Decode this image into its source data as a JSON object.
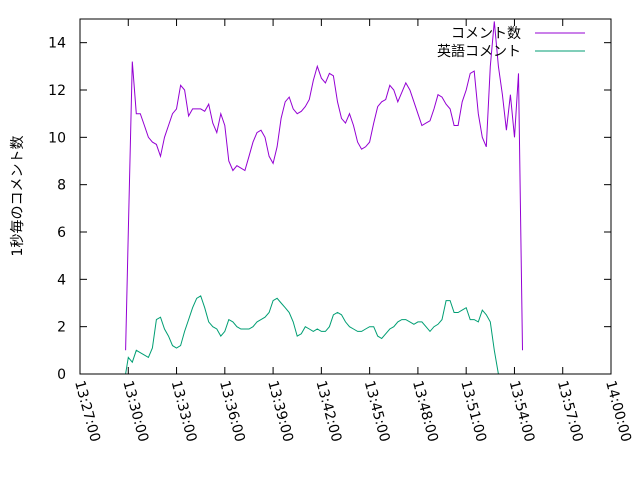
{
  "chart_data": {
    "type": "line",
    "title": "",
    "xlabel": "",
    "ylabel": "1秒毎のコメント数",
    "xlim": [
      "13:27:00",
      "14:00:00"
    ],
    "ylim": [
      0,
      15
    ],
    "grid": false,
    "legend_position": "top-right",
    "x_ticks": [
      "13:27:00",
      "13:30:00",
      "13:33:00",
      "13:36:00",
      "13:39:00",
      "13:42:00",
      "13:45:00",
      "13:48:00",
      "13:51:00",
      "13:54:00",
      "13:57:00",
      "14:00:00"
    ],
    "y_ticks": [
      0,
      2,
      4,
      6,
      8,
      10,
      12,
      14
    ],
    "series": [
      {
        "name": "コメント数",
        "color": "#9400d3",
        "points": [
          [
            "13:29:50",
            1.0
          ],
          [
            "13:30:00",
            6.0
          ],
          [
            "13:30:15",
            13.2
          ],
          [
            "13:30:30",
            11.0
          ],
          [
            "13:30:45",
            11.0
          ],
          [
            "13:31:00",
            10.5
          ],
          [
            "13:31:15",
            10.0
          ],
          [
            "13:31:30",
            9.8
          ],
          [
            "13:31:45",
            9.7
          ],
          [
            "13:32:00",
            9.2
          ],
          [
            "13:32:15",
            10.0
          ],
          [
            "13:32:30",
            10.5
          ],
          [
            "13:32:45",
            11.0
          ],
          [
            "13:33:00",
            11.2
          ],
          [
            "13:33:15",
            12.2
          ],
          [
            "13:33:30",
            12.0
          ],
          [
            "13:33:45",
            10.9
          ],
          [
            "13:34:00",
            11.2
          ],
          [
            "13:34:30",
            11.2
          ],
          [
            "13:34:45",
            11.1
          ],
          [
            "13:35:00",
            11.4
          ],
          [
            "13:35:15",
            10.6
          ],
          [
            "13:35:30",
            10.2
          ],
          [
            "13:35:45",
            11.0
          ],
          [
            "13:36:00",
            10.5
          ],
          [
            "13:36:15",
            9.0
          ],
          [
            "13:36:30",
            8.6
          ],
          [
            "13:36:45",
            8.8
          ],
          [
            "13:37:00",
            8.7
          ],
          [
            "13:37:15",
            8.6
          ],
          [
            "13:37:30",
            9.2
          ],
          [
            "13:37:45",
            9.8
          ],
          [
            "13:38:00",
            10.2
          ],
          [
            "13:38:15",
            10.3
          ],
          [
            "13:38:30",
            10.0
          ],
          [
            "13:38:45",
            9.2
          ],
          [
            "13:39:00",
            8.9
          ],
          [
            "13:39:15",
            9.6
          ],
          [
            "13:39:30",
            10.8
          ],
          [
            "13:39:45",
            11.5
          ],
          [
            "13:40:00",
            11.7
          ],
          [
            "13:40:15",
            11.2
          ],
          [
            "13:40:30",
            11.0
          ],
          [
            "13:40:45",
            11.1
          ],
          [
            "13:41:00",
            11.3
          ],
          [
            "13:41:15",
            11.6
          ],
          [
            "13:41:30",
            12.4
          ],
          [
            "13:41:45",
            13.0
          ],
          [
            "13:42:00",
            12.5
          ],
          [
            "13:42:15",
            12.3
          ],
          [
            "13:42:30",
            12.7
          ],
          [
            "13:42:45",
            12.6
          ],
          [
            "13:43:00",
            11.5
          ],
          [
            "13:43:15",
            10.8
          ],
          [
            "13:43:30",
            10.6
          ],
          [
            "13:43:45",
            11.0
          ],
          [
            "13:44:00",
            10.5
          ],
          [
            "13:44:15",
            9.8
          ],
          [
            "13:44:30",
            9.5
          ],
          [
            "13:44:45",
            9.6
          ],
          [
            "13:45:00",
            9.8
          ],
          [
            "13:45:15",
            10.6
          ],
          [
            "13:45:30",
            11.3
          ],
          [
            "13:45:45",
            11.5
          ],
          [
            "13:46:00",
            11.6
          ],
          [
            "13:46:15",
            12.2
          ],
          [
            "13:46:30",
            12.0
          ],
          [
            "13:46:45",
            11.5
          ],
          [
            "13:47:00",
            11.9
          ],
          [
            "13:47:15",
            12.3
          ],
          [
            "13:47:30",
            12.0
          ],
          [
            "13:47:45",
            11.5
          ],
          [
            "13:48:00",
            11.0
          ],
          [
            "13:48:15",
            10.5
          ],
          [
            "13:48:30",
            10.6
          ],
          [
            "13:48:45",
            10.7
          ],
          [
            "13:49:00",
            11.2
          ],
          [
            "13:49:15",
            11.8
          ],
          [
            "13:49:30",
            11.7
          ],
          [
            "13:49:45",
            11.4
          ],
          [
            "13:50:00",
            11.2
          ],
          [
            "13:50:15",
            10.5
          ],
          [
            "13:50:30",
            10.5
          ],
          [
            "13:50:45",
            11.5
          ],
          [
            "13:51:00",
            12.0
          ],
          [
            "13:51:15",
            12.7
          ],
          [
            "13:51:30",
            12.8
          ],
          [
            "13:51:45",
            11.0
          ],
          [
            "13:52:00",
            10.0
          ],
          [
            "13:52:15",
            9.6
          ],
          [
            "13:52:30",
            13.0
          ],
          [
            "13:52:45",
            14.9
          ],
          [
            "13:53:00",
            13.0
          ],
          [
            "13:53:15",
            11.8
          ],
          [
            "13:53:30",
            10.3
          ],
          [
            "13:53:45",
            11.8
          ],
          [
            "13:54:00",
            10.0
          ],
          [
            "13:54:15",
            12.7
          ],
          [
            "13:54:30",
            1.0
          ]
        ]
      },
      {
        "name": "英語コメント",
        "color": "#009e73",
        "points": [
          [
            "13:29:50",
            0.0
          ],
          [
            "13:30:00",
            0.7
          ],
          [
            "13:30:15",
            0.5
          ],
          [
            "13:30:30",
            1.0
          ],
          [
            "13:30:45",
            0.9
          ],
          [
            "13:31:00",
            0.8
          ],
          [
            "13:31:15",
            0.7
          ],
          [
            "13:31:30",
            1.1
          ],
          [
            "13:31:45",
            2.3
          ],
          [
            "13:32:00",
            2.4
          ],
          [
            "13:32:15",
            1.9
          ],
          [
            "13:32:30",
            1.6
          ],
          [
            "13:32:45",
            1.2
          ],
          [
            "13:33:00",
            1.1
          ],
          [
            "13:33:15",
            1.2
          ],
          [
            "13:33:30",
            1.8
          ],
          [
            "13:33:45",
            2.3
          ],
          [
            "13:34:00",
            2.8
          ],
          [
            "13:34:15",
            3.2
          ],
          [
            "13:34:30",
            3.3
          ],
          [
            "13:34:45",
            2.8
          ],
          [
            "13:35:00",
            2.2
          ],
          [
            "13:35:15",
            2.0
          ],
          [
            "13:35:30",
            1.9
          ],
          [
            "13:35:45",
            1.6
          ],
          [
            "13:36:00",
            1.8
          ],
          [
            "13:36:15",
            2.3
          ],
          [
            "13:36:30",
            2.2
          ],
          [
            "13:36:45",
            2.0
          ],
          [
            "13:37:00",
            1.9
          ],
          [
            "13:37:30",
            1.9
          ],
          [
            "13:37:45",
            2.0
          ],
          [
            "13:38:00",
            2.2
          ],
          [
            "13:38:15",
            2.3
          ],
          [
            "13:38:30",
            2.4
          ],
          [
            "13:38:45",
            2.6
          ],
          [
            "13:39:00",
            3.1
          ],
          [
            "13:39:15",
            3.2
          ],
          [
            "13:39:30",
            3.0
          ],
          [
            "13:39:45",
            2.8
          ],
          [
            "13:40:00",
            2.6
          ],
          [
            "13:40:15",
            2.2
          ],
          [
            "13:40:30",
            1.6
          ],
          [
            "13:40:45",
            1.7
          ],
          [
            "13:41:00",
            2.0
          ],
          [
            "13:41:15",
            1.9
          ],
          [
            "13:41:30",
            1.8
          ],
          [
            "13:41:45",
            1.9
          ],
          [
            "13:42:00",
            1.8
          ],
          [
            "13:42:15",
            1.8
          ],
          [
            "13:42:30",
            2.0
          ],
          [
            "13:42:45",
            2.5
          ],
          [
            "13:43:00",
            2.6
          ],
          [
            "13:43:15",
            2.5
          ],
          [
            "13:43:30",
            2.2
          ],
          [
            "13:43:45",
            2.0
          ],
          [
            "13:44:00",
            1.9
          ],
          [
            "13:44:15",
            1.8
          ],
          [
            "13:44:30",
            1.8
          ],
          [
            "13:44:45",
            1.9
          ],
          [
            "13:45:00",
            2.0
          ],
          [
            "13:45:15",
            2.0
          ],
          [
            "13:45:30",
            1.6
          ],
          [
            "13:45:45",
            1.5
          ],
          [
            "13:46:00",
            1.7
          ],
          [
            "13:46:15",
            1.9
          ],
          [
            "13:46:30",
            2.0
          ],
          [
            "13:46:45",
            2.2
          ],
          [
            "13:47:00",
            2.3
          ],
          [
            "13:47:15",
            2.3
          ],
          [
            "13:47:30",
            2.2
          ],
          [
            "13:47:45",
            2.1
          ],
          [
            "13:48:00",
            2.2
          ],
          [
            "13:48:15",
            2.2
          ],
          [
            "13:48:30",
            2.0
          ],
          [
            "13:48:45",
            1.8
          ],
          [
            "13:49:00",
            2.0
          ],
          [
            "13:49:15",
            2.1
          ],
          [
            "13:49:30",
            2.3
          ],
          [
            "13:49:45",
            3.1
          ],
          [
            "13:50:00",
            3.1
          ],
          [
            "13:50:15",
            2.6
          ],
          [
            "13:50:30",
            2.6
          ],
          [
            "13:50:45",
            2.7
          ],
          [
            "13:51:00",
            2.8
          ],
          [
            "13:51:15",
            2.3
          ],
          [
            "13:51:30",
            2.3
          ],
          [
            "13:51:45",
            2.2
          ],
          [
            "13:52:00",
            2.7
          ],
          [
            "13:52:15",
            2.5
          ],
          [
            "13:52:30",
            2.2
          ],
          [
            "13:52:45",
            1.0
          ],
          [
            "13:53:00",
            0.0
          ]
        ]
      }
    ]
  }
}
